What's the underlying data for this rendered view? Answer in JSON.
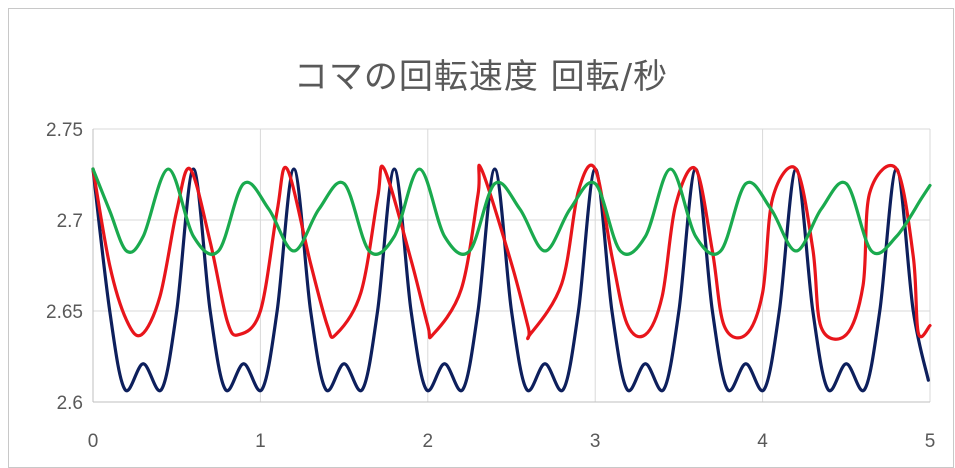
{
  "chart_data": {
    "type": "line",
    "title": "コマの回転速度 回転/秒",
    "xlabel": "",
    "ylabel": "",
    "xlim": [
      0,
      5
    ],
    "ylim": [
      2.6,
      2.75
    ],
    "x_ticks": [
      "0",
      "1",
      "2",
      "3",
      "4",
      "5"
    ],
    "y_ticks": [
      "2.6",
      "2.65",
      "2.7",
      "2.75"
    ],
    "grid": true,
    "legend": "none",
    "series": [
      {
        "color": "#0d1f5c",
        "x": [
          0,
          0.1,
          0.19,
          0.3,
          0.41,
          0.5,
          0.6,
          0.7,
          0.79,
          0.9,
          1.01,
          1.1,
          1.2,
          1.3,
          1.39,
          1.5,
          1.61,
          1.7,
          1.8,
          1.9,
          1.99,
          2.1,
          2.21,
          2.3,
          2.4,
          2.5,
          2.59,
          2.7,
          2.81,
          2.9,
          3.0,
          3.1,
          3.19,
          3.3,
          3.41,
          3.5,
          3.6,
          3.7,
          3.79,
          3.9,
          4.01,
          4.1,
          4.2,
          4.3,
          4.39,
          4.5,
          4.61,
          4.7,
          4.8,
          4.9,
          4.99
        ],
        "y": [
          2.728,
          2.65,
          2.607,
          2.621,
          2.607,
          2.65,
          2.728,
          2.65,
          2.607,
          2.621,
          2.607,
          2.65,
          2.728,
          2.65,
          2.607,
          2.621,
          2.607,
          2.65,
          2.728,
          2.65,
          2.607,
          2.621,
          2.607,
          2.65,
          2.728,
          2.65,
          2.607,
          2.621,
          2.607,
          2.65,
          2.728,
          2.65,
          2.607,
          2.621,
          2.607,
          2.65,
          2.728,
          2.65,
          2.607,
          2.621,
          2.607,
          2.65,
          2.728,
          2.65,
          2.607,
          2.621,
          2.607,
          2.65,
          2.728,
          2.65,
          2.612
        ]
      },
      {
        "color": "#e8151b",
        "x": [
          0,
          0.1,
          0.2,
          0.29,
          0.4,
          0.5,
          0.58,
          0.7,
          0.8,
          0.87,
          1.0,
          1.1,
          1.16,
          1.3,
          1.4,
          1.45,
          1.6,
          1.7,
          1.74,
          1.9,
          2.0,
          2.03,
          2.2,
          2.3,
          2.32,
          2.5,
          2.6,
          2.61,
          2.8,
          2.9,
          3.0,
          3.1,
          3.19,
          3.3,
          3.4,
          3.48,
          3.6,
          3.7,
          3.77,
          3.9,
          4.0,
          4.06,
          4.2,
          4.3,
          4.35,
          4.5,
          4.6,
          4.64,
          4.8,
          4.9,
          4.93,
          5.0
        ],
        "y": [
          2.728,
          2.675,
          2.645,
          2.637,
          2.658,
          2.705,
          2.728,
          2.688,
          2.645,
          2.637,
          2.65,
          2.705,
          2.728,
          2.676,
          2.642,
          2.637,
          2.66,
          2.712,
          2.728,
          2.678,
          2.642,
          2.637,
          2.662,
          2.714,
          2.728,
          2.676,
          2.641,
          2.637,
          2.665,
          2.716,
          2.728,
          2.68,
          2.643,
          2.637,
          2.658,
          2.708,
          2.728,
          2.683,
          2.642,
          2.637,
          2.66,
          2.712,
          2.728,
          2.684,
          2.641,
          2.637,
          2.664,
          2.715,
          2.728,
          2.68,
          2.638,
          2.642
        ]
      },
      {
        "color": "#1aaa4e",
        "x": [
          0,
          0.1,
          0.2,
          0.3,
          0.45,
          0.6,
          0.75,
          0.9,
          1.05,
          1.2,
          1.35,
          1.5,
          1.65,
          1.8,
          1.95,
          2.1,
          2.25,
          2.4,
          2.55,
          2.7,
          2.85,
          3.0,
          3.15,
          3.3,
          3.45,
          3.6,
          3.75,
          3.9,
          4.05,
          4.2,
          4.35,
          4.5,
          4.65,
          4.8,
          4.95,
          5.0
        ],
        "y": [
          2.728,
          2.705,
          2.683,
          2.691,
          2.728,
          2.691,
          2.683,
          2.72,
          2.706,
          2.683,
          2.706,
          2.72,
          2.683,
          2.691,
          2.728,
          2.691,
          2.683,
          2.72,
          2.706,
          2.683,
          2.706,
          2.72,
          2.683,
          2.691,
          2.728,
          2.691,
          2.683,
          2.72,
          2.706,
          2.683,
          2.706,
          2.72,
          2.683,
          2.691,
          2.712,
          2.719
        ]
      }
    ]
  }
}
